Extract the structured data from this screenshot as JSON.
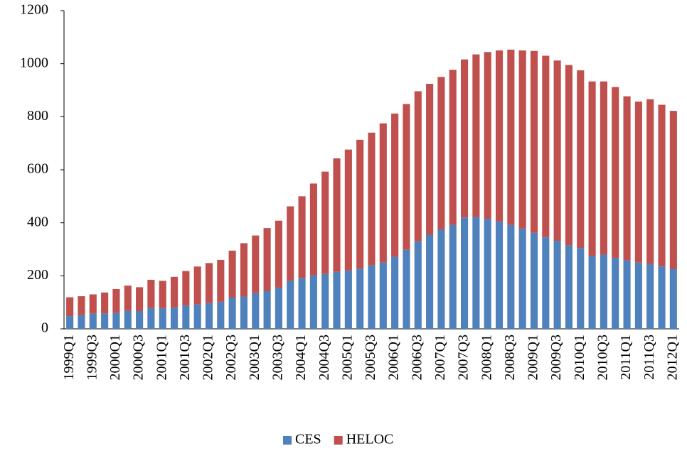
{
  "chart_data": {
    "type": "stacked_bar",
    "categories": [
      "1999Q1",
      null,
      "1999Q3",
      null,
      "2000Q1",
      null,
      "2000Q3",
      null,
      "2001Q1",
      null,
      "2001Q3",
      null,
      "2002Q1",
      null,
      "2002Q3",
      null,
      "2003Q1",
      null,
      "2003Q3",
      null,
      "2004Q1",
      null,
      "2004Q3",
      null,
      "2005Q1",
      null,
      "2005Q3",
      null,
      "2006Q1",
      null,
      "2006Q3",
      null,
      "2007Q1",
      null,
      "2007Q3",
      null,
      "2008Q1",
      null,
      "2008Q3",
      null,
      "2009Q1",
      null,
      "2009Q3",
      null,
      "2010Q1",
      null,
      "2010Q3",
      null,
      "2011Q1",
      null,
      "2011Q3",
      null,
      "2012Q1"
    ],
    "series": [
      {
        "name": "CES",
        "color": "#4f81bd",
        "values": [
          48,
          52,
          57,
          58,
          60,
          68,
          67,
          78,
          78,
          80,
          88,
          92,
          97,
          102,
          118,
          122,
          135,
          142,
          155,
          182,
          192,
          202,
          207,
          215,
          220,
          227,
          240,
          250,
          272,
          298,
          330,
          355,
          375,
          392,
          420,
          422,
          415,
          405,
          392,
          378,
          362,
          345,
          332,
          315,
          305,
          275,
          280,
          268,
          258,
          250,
          245,
          235,
          225
        ]
      },
      {
        "name": "HELOC",
        "color": "#c0504d",
        "values": [
          71,
          71,
          73,
          79,
          90,
          95,
          90,
          107,
          103,
          116,
          130,
          143,
          151,
          158,
          177,
          201,
          217,
          238,
          253,
          280,
          308,
          346,
          386,
          428,
          456,
          486,
          500,
          525,
          540,
          550,
          566,
          569,
          575,
          585,
          596,
          613,
          629,
          645,
          661,
          672,
          686,
          685,
          680,
          680,
          670,
          658,
          653,
          644,
          619,
          607,
          621,
          610,
          597
        ]
      }
    ],
    "ylim": [
      0,
      1200
    ],
    "yticks": [
      0,
      200,
      400,
      600,
      800,
      1000,
      1200
    ],
    "legend": "bottom"
  }
}
